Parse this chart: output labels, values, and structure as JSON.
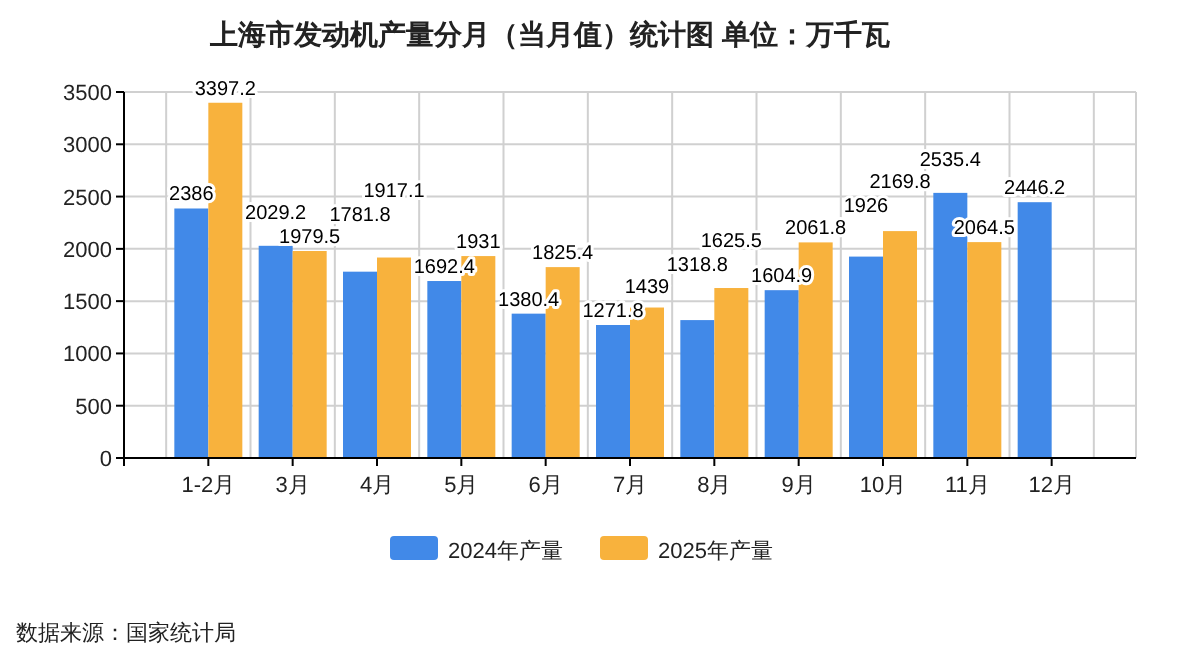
{
  "chart_data": {
    "type": "bar",
    "title": "上海市发动机产量分月（当月值）统计图 单位：万千瓦",
    "categories": [
      "1-2月",
      "3月",
      "4月",
      "5月",
      "6月",
      "7月",
      "8月",
      "9月",
      "10月",
      "11月",
      "12月"
    ],
    "series": [
      {
        "name": "2024年产量",
        "color": "#4189e8",
        "values": [
          2386,
          2029.2,
          1781.8,
          1692.4,
          1380.4,
          1271.8,
          1318.8,
          1604.9,
          1926,
          2535.4,
          2446.2
        ]
      },
      {
        "name": "2025年产量",
        "color": "#f8b23d",
        "values": [
          3397.2,
          1979.5,
          1917.1,
          1931,
          1825.4,
          1439,
          1625.5,
          2061.8,
          2169.8,
          2064.5,
          null
        ]
      }
    ],
    "ylim": [
      0,
      3500
    ],
    "yticks": [
      0,
      500,
      1000,
      1500,
      2000,
      2500,
      3000,
      3500
    ],
    "grid": true,
    "legend": "bottom",
    "data_labels": true,
    "annotations": [
      "数据来源：国家统计局"
    ]
  }
}
